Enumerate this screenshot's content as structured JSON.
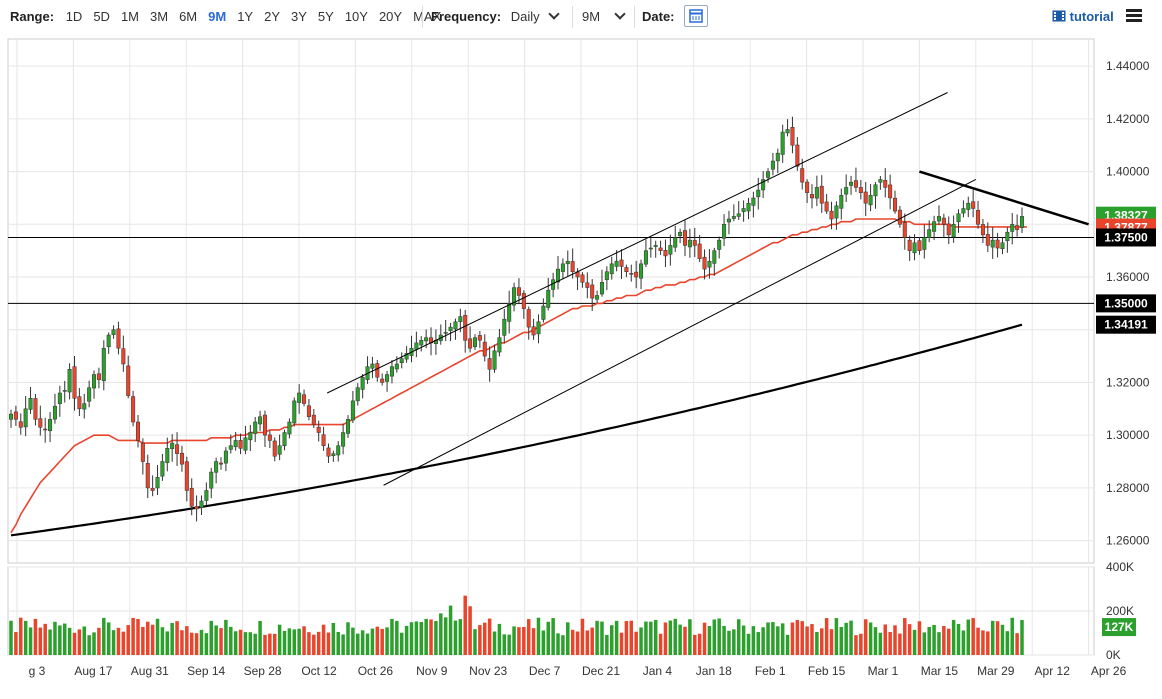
{
  "toolbar": {
    "range_label": "Range:",
    "ranges": [
      "1D",
      "5D",
      "1M",
      "3M",
      "6M",
      "9M",
      "1Y",
      "2Y",
      "3Y",
      "5Y",
      "10Y",
      "20Y",
      "MAX"
    ],
    "active_range": "9M",
    "frequency_label": "Frequency:",
    "frequency_value": "Daily",
    "period_value": "9M",
    "date_label": "Date:",
    "tutorial_label": "tutorial"
  },
  "chart_data": {
    "type": "candlestick",
    "x_tick_labels": [
      "g 3",
      "Aug 17",
      "Aug 31",
      "Sep 14",
      "Sep 28",
      "Oct 12",
      "Oct 26",
      "Nov 9",
      "Nov 23",
      "Dec 7",
      "Dec 21",
      "Jan 4",
      "Jan 18",
      "Feb 1",
      "Feb 15",
      "Mar 1",
      "Mar 15",
      "Mar 29",
      "Apr 12",
      "Apr 26"
    ],
    "y_ticks": [
      "1.44000",
      "1.42000",
      "1.40000",
      "1.38000",
      "1.36000",
      "1.34000",
      "1.32000",
      "1.30000",
      "1.28000",
      "1.26000"
    ],
    "y_range": [
      1.2515,
      1.4503
    ],
    "volume_ticks": [
      "400K",
      "200K",
      "0K"
    ],
    "volume_range": [
      0,
      400
    ],
    "price_labels": [
      {
        "text": "1.38327",
        "value": 1.38327,
        "color": "#2ca02c"
      },
      {
        "text": "1.37877",
        "value": 1.37877,
        "color": "#e8452c"
      },
      {
        "text": "1.37500",
        "value": 1.375,
        "color": "#000000"
      },
      {
        "text": "1.35000",
        "value": 1.35,
        "color": "#000000"
      },
      {
        "text": "1.34191",
        "value": 1.34191,
        "color": "#000000"
      }
    ],
    "current_volume_label": "127K",
    "horizontal_lines": [
      1.375,
      1.35
    ],
    "close_series": [
      1.308,
      1.306,
      1.303,
      1.31,
      1.314,
      1.306,
      1.303,
      1.302,
      1.306,
      1.311,
      1.316,
      1.317,
      1.325,
      1.314,
      1.31,
      1.312,
      1.318,
      1.323,
      1.321,
      1.333,
      1.338,
      1.34,
      1.333,
      1.327,
      1.315,
      1.305,
      1.298,
      1.29,
      1.28,
      1.279,
      1.284,
      1.29,
      1.295,
      1.297,
      1.293,
      1.289,
      1.279,
      1.273,
      1.272,
      1.275,
      1.279,
      1.286,
      1.29,
      1.289,
      1.294,
      1.296,
      1.298,
      1.295,
      1.299,
      1.301,
      1.305,
      1.307,
      1.3,
      1.298,
      1.292,
      1.296,
      1.301,
      1.305,
      1.313,
      1.316,
      1.312,
      1.307,
      1.304,
      1.301,
      1.296,
      1.292,
      1.293,
      1.296,
      1.301,
      1.306,
      1.313,
      1.318,
      1.322,
      1.326,
      1.327,
      1.322,
      1.32,
      1.323,
      1.326,
      1.327,
      1.329,
      1.331,
      1.333,
      1.335,
      1.336,
      1.337,
      1.335,
      1.336,
      1.338,
      1.339,
      1.341,
      1.343,
      1.345,
      1.336,
      1.333,
      1.337,
      1.336,
      1.33,
      1.325,
      1.332,
      1.337,
      1.344,
      1.35,
      1.356,
      1.353,
      1.348,
      1.341,
      1.338,
      1.343,
      1.349,
      1.355,
      1.359,
      1.363,
      1.365,
      1.366,
      1.362,
      1.36,
      1.358,
      1.356,
      1.352,
      1.353,
      1.358,
      1.362,
      1.365,
      1.366,
      1.364,
      1.362,
      1.361,
      1.36,
      1.365,
      1.37,
      1.371,
      1.372,
      1.37,
      1.368,
      1.372,
      1.375,
      1.377,
      1.372,
      1.374,
      1.372,
      1.367,
      1.363,
      1.366,
      1.37,
      1.374,
      1.38,
      1.382,
      1.383,
      1.384,
      1.386,
      1.388,
      1.39,
      1.393,
      1.397,
      1.4,
      1.404,
      1.407,
      1.415,
      1.416,
      1.41,
      1.402,
      1.396,
      1.392,
      1.39,
      1.394,
      1.388,
      1.385,
      1.382,
      1.387,
      1.391,
      1.394,
      1.396,
      1.394,
      1.392,
      1.388,
      1.391,
      1.395,
      1.397,
      1.394,
      1.39,
      1.385,
      1.38,
      1.375,
      1.37,
      1.373,
      1.37,
      1.375,
      1.378,
      1.381,
      1.383,
      1.38,
      1.376,
      1.38,
      1.384,
      1.386,
      1.388,
      1.386,
      1.38,
      1.376,
      1.372,
      1.374,
      1.371,
      1.373,
      1.377,
      1.38,
      1.378,
      1.383
    ],
    "ema50_series": [
      1.263,
      1.266,
      1.27,
      1.273,
      1.276,
      1.279,
      1.282,
      1.284,
      1.286,
      1.288,
      1.29,
      1.292,
      1.294,
      1.296,
      1.297,
      1.298,
      1.299,
      1.3,
      1.3,
      1.3,
      1.3,
      1.299,
      1.298,
      1.298,
      1.298,
      1.298,
      1.298,
      1.297,
      1.297,
      1.297,
      1.297,
      1.297,
      1.297,
      1.298,
      1.298,
      1.298,
      1.298,
      1.298,
      1.298,
      1.298,
      1.298,
      1.299,
      1.299,
      1.299,
      1.299,
      1.299,
      1.3,
      1.3,
      1.3,
      1.301,
      1.301,
      1.301,
      1.301,
      1.302,
      1.302,
      1.302,
      1.303,
      1.303,
      1.304,
      1.304,
      1.304,
      1.304,
      1.304,
      1.304,
      1.304,
      1.304,
      1.304,
      1.304,
      1.304,
      1.305,
      1.306,
      1.307,
      1.308,
      1.309,
      1.31,
      1.311,
      1.312,
      1.313,
      1.314,
      1.315,
      1.316,
      1.317,
      1.318,
      1.319,
      1.32,
      1.321,
      1.322,
      1.323,
      1.324,
      1.325,
      1.326,
      1.327,
      1.328,
      1.329,
      1.33,
      1.331,
      1.332,
      1.332,
      1.333,
      1.334,
      1.335,
      1.335,
      1.336,
      1.337,
      1.338,
      1.339,
      1.339,
      1.34,
      1.341,
      1.342,
      1.343,
      1.344,
      1.345,
      1.346,
      1.347,
      1.348,
      1.348,
      1.349,
      1.349,
      1.349,
      1.35,
      1.35,
      1.351,
      1.351,
      1.352,
      1.352,
      1.353,
      1.353,
      1.353,
      1.354,
      1.355,
      1.355,
      1.356,
      1.356,
      1.357,
      1.357,
      1.357,
      1.358,
      1.358,
      1.359,
      1.359,
      1.36,
      1.36,
      1.361,
      1.361,
      1.362,
      1.363,
      1.364,
      1.365,
      1.366,
      1.367,
      1.368,
      1.369,
      1.37,
      1.371,
      1.372,
      1.373,
      1.373,
      1.374,
      1.375,
      1.376,
      1.376,
      1.377,
      1.377,
      1.378,
      1.378,
      1.379,
      1.379,
      1.38,
      1.38,
      1.381,
      1.381,
      1.381,
      1.382,
      1.382,
      1.382,
      1.382,
      1.382,
      1.382,
      1.382,
      1.382,
      1.382,
      1.381,
      1.381,
      1.381,
      1.38,
      1.38,
      1.38,
      1.38,
      1.38,
      1.38,
      1.38,
      1.38,
      1.379,
      1.379,
      1.379,
      1.379,
      1.379,
      1.379,
      1.379,
      1.379,
      1.379,
      1.379,
      1.379,
      1.379,
      1.379,
      1.379,
      1.379,
      1.379
    ],
    "sma200_start": 1.262,
    "sma200_end": 1.34191,
    "trendlines": [
      {
        "name": "channel-upper",
        "from": [
          "Oct 19",
          1.316
        ],
        "to": [
          "Mar 22",
          1.43
        ]
      },
      {
        "name": "channel-lower",
        "from": [
          "Nov 2",
          1.281
        ],
        "to": [
          "Mar 29",
          1.397
        ]
      },
      {
        "name": "descending-resistance",
        "from": [
          "Mar 15",
          1.4
        ],
        "to": [
          "Apr 26",
          1.38
        ]
      }
    ],
    "grid": true,
    "colors": {
      "up": "#2ca02c",
      "down": "#e8452c",
      "ema": "#e8452c",
      "sma": "#000000"
    }
  }
}
